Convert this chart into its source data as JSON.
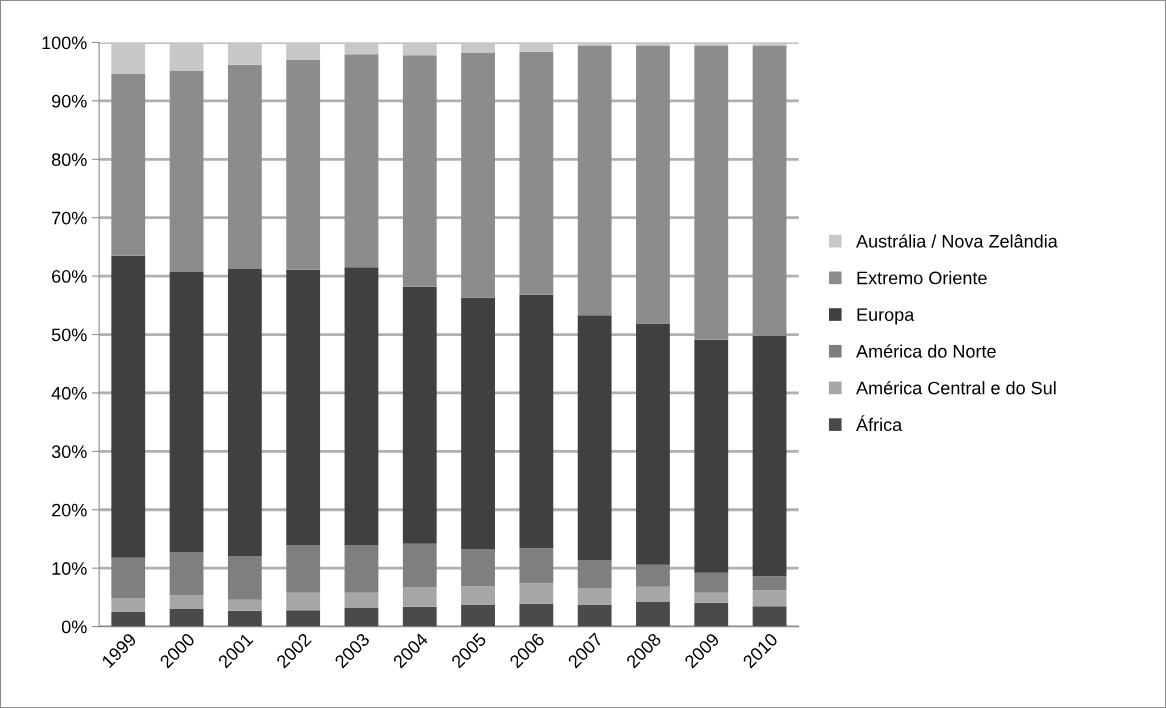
{
  "chart_data": {
    "type": "bar",
    "stacked": true,
    "categories": [
      "1999",
      "2000",
      "2001",
      "2002",
      "2003",
      "2004",
      "2005",
      "2006",
      "2007",
      "2008",
      "2009",
      "2010"
    ],
    "series": [
      {
        "name": "África",
        "color": "#4a4a4a",
        "values": [
          2.5,
          3.0,
          2.7,
          2.8,
          3.2,
          3.4,
          3.7,
          3.9,
          3.7,
          4.2,
          4.1,
          3.5
        ]
      },
      {
        "name": "América Central e do Sul",
        "color": "#a6a6a6",
        "values": [
          2.3,
          2.3,
          1.9,
          3.0,
          2.6,
          3.3,
          3.2,
          3.5,
          2.9,
          2.6,
          1.7,
          2.7
        ]
      },
      {
        "name": "América do Norte",
        "color": "#7f7f7f",
        "values": [
          7.0,
          7.4,
          7.4,
          8.1,
          8.1,
          7.5,
          6.3,
          6.0,
          4.7,
          3.8,
          3.4,
          2.4
        ]
      },
      {
        "name": "Europa",
        "color": "#404040",
        "values": [
          51.7,
          48.0,
          49.2,
          47.2,
          47.6,
          44.0,
          43.1,
          43.4,
          42.0,
          41.3,
          39.9,
          41.2
        ]
      },
      {
        "name": "Extremo Oriente",
        "color": "#8c8c8c",
        "values": [
          31.1,
          34.5,
          35.0,
          35.9,
          36.5,
          39.6,
          42.0,
          41.6,
          46.2,
          47.5,
          50.3,
          49.6
        ]
      },
      {
        "name": "Austrália / Nova Zelândia",
        "color": "#c8c8c8",
        "values": [
          5.4,
          4.8,
          3.8,
          3.0,
          2.0,
          2.2,
          1.7,
          1.6,
          0.5,
          0.6,
          0.6,
          0.6
        ]
      }
    ],
    "ylim": [
      0,
      100
    ],
    "yticks": [
      {
        "value": 0,
        "label": "0%"
      },
      {
        "value": 10,
        "label": "10%"
      },
      {
        "value": 20,
        "label": "20%"
      },
      {
        "value": 30,
        "label": "30%"
      },
      {
        "value": 40,
        "label": "40%"
      },
      {
        "value": 50,
        "label": "50%"
      },
      {
        "value": 60,
        "label": "60%"
      },
      {
        "value": 70,
        "label": "70%"
      },
      {
        "value": 80,
        "label": "80%"
      },
      {
        "value": 90,
        "label": "90%"
      },
      {
        "value": 100,
        "label": "100%"
      }
    ],
    "grid": "y",
    "legend": "right"
  }
}
